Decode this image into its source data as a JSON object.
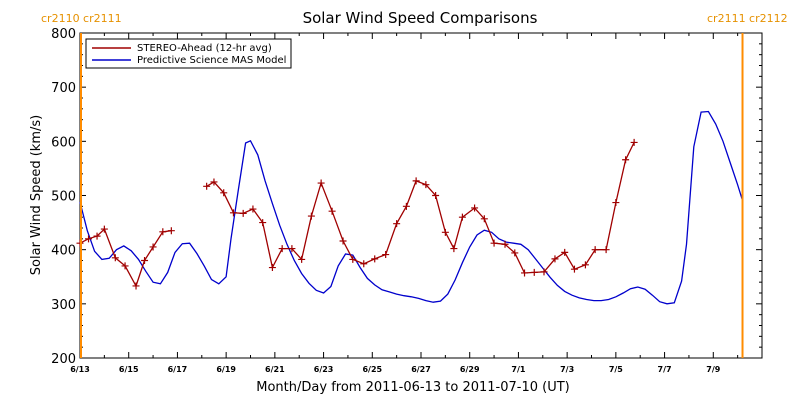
{
  "chart_data": {
    "type": "line",
    "title": "Solar Wind Speed Comparisons",
    "xlabel": "Month/Day from 2011-06-13 to 2011-07-10 (UT)",
    "ylabel": "Solar Wind Speed (km/s)",
    "ylim": [
      200,
      800
    ],
    "yticks": [
      200,
      300,
      400,
      500,
      600,
      700,
      800
    ],
    "xlim": [
      0,
      28
    ],
    "xtick_labels": [
      "6/13",
      "6/15",
      "6/17",
      "6/19",
      "6/21",
      "6/23",
      "6/25",
      "6/27",
      "6/29",
      "7/1",
      "7/3",
      "7/5",
      "7/7",
      "7/9"
    ],
    "xtick_values": [
      0,
      2,
      4,
      6,
      8,
      10,
      12,
      14,
      16,
      18,
      20,
      22,
      24,
      26
    ],
    "rotation_labels": {
      "left": "cr2110 cr2111",
      "right": "cr2111 cr2112"
    },
    "rotation_marker_x": [
      0,
      27.2
    ],
    "legend_position": "top-left",
    "colors": {
      "stereo": "#a00000",
      "model": "#0000cc",
      "rotation_marker": "#ff8c00"
    },
    "series": [
      {
        "name": "STEREO-Ahead (12-hr avg)",
        "marker": "plus",
        "segments": [
          [
            [
              0.0,
              412
            ],
            [
              0.35,
              420
            ],
            [
              0.7,
              425
            ],
            [
              1.0,
              438
            ],
            [
              1.45,
              385
            ],
            [
              1.85,
              370
            ],
            [
              2.3,
              333
            ],
            [
              2.65,
              380
            ],
            [
              3.0,
              405
            ],
            [
              3.4,
              433
            ],
            [
              3.75,
              435
            ]
          ],
          [
            [
              5.2,
              517
            ],
            [
              5.5,
              525
            ],
            [
              5.9,
              505
            ],
            [
              6.3,
              468
            ],
            [
              6.7,
              467
            ],
            [
              7.1,
              475
            ],
            [
              7.5,
              450
            ],
            [
              7.9,
              367
            ],
            [
              8.3,
              402
            ],
            [
              8.7,
              402
            ],
            [
              9.1,
              382
            ],
            [
              9.5,
              462
            ],
            [
              9.9,
              523
            ],
            [
              10.35,
              471
            ],
            [
              10.8,
              416
            ],
            [
              11.2,
              382
            ],
            [
              11.65,
              374
            ],
            [
              12.1,
              383
            ],
            [
              12.55,
              391
            ],
            [
              13.0,
              448
            ],
            [
              13.4,
              480
            ],
            [
              13.8,
              527
            ],
            [
              14.2,
              520
            ],
            [
              14.6,
              500
            ],
            [
              15.0,
              432
            ],
            [
              15.35,
              402
            ],
            [
              15.7,
              460
            ],
            [
              16.2,
              477
            ],
            [
              16.6,
              457
            ],
            [
              17.0,
              412
            ],
            [
              17.45,
              410
            ],
            [
              17.85,
              394
            ],
            [
              18.25,
              357
            ],
            [
              18.65,
              358
            ],
            [
              19.05,
              359
            ],
            [
              19.5,
              383
            ],
            [
              19.9,
              395
            ],
            [
              20.3,
              364
            ],
            [
              20.75,
              372
            ],
            [
              21.15,
              400
            ],
            [
              21.6,
              400
            ],
            [
              22.0,
              487
            ],
            [
              22.4,
              566
            ],
            [
              22.75,
              598
            ]
          ]
        ]
      },
      {
        "name": "Predictive Science MAS Model",
        "marker": "none",
        "segments": [
          [
            [
              0.0,
              488
            ],
            [
              0.3,
              435
            ],
            [
              0.6,
              397
            ],
            [
              0.9,
              382
            ],
            [
              1.2,
              384
            ],
            [
              1.5,
              400
            ],
            [
              1.8,
              407
            ],
            [
              2.1,
              398
            ],
            [
              2.4,
              382
            ],
            [
              2.7,
              360
            ],
            [
              3.0,
              340
            ],
            [
              3.3,
              337
            ],
            [
              3.6,
              358
            ],
            [
              3.9,
              395
            ],
            [
              4.2,
              411
            ],
            [
              4.5,
              412
            ],
            [
              4.8,
              393
            ],
            [
              5.1,
              370
            ],
            [
              5.4,
              345
            ],
            [
              5.7,
              337
            ],
            [
              6.0,
              350
            ],
            [
              6.2,
              420
            ],
            [
              6.5,
              510
            ],
            [
              6.8,
              597
            ],
            [
              7.0,
              601
            ],
            [
              7.3,
              575
            ],
            [
              7.6,
              527
            ],
            [
              7.9,
              485
            ],
            [
              8.2,
              445
            ],
            [
              8.5,
              410
            ],
            [
              8.8,
              380
            ],
            [
              9.1,
              356
            ],
            [
              9.4,
              338
            ],
            [
              9.7,
              325
            ],
            [
              10.0,
              320
            ],
            [
              10.3,
              332
            ],
            [
              10.6,
              370
            ],
            [
              10.9,
              392
            ],
            [
              11.2,
              390
            ],
            [
              11.5,
              367
            ],
            [
              11.8,
              347
            ],
            [
              12.1,
              335
            ],
            [
              12.4,
              326
            ],
            [
              12.7,
              322
            ],
            [
              13.0,
              318
            ],
            [
              13.3,
              315
            ],
            [
              13.6,
              313
            ],
            [
              13.9,
              310
            ],
            [
              14.2,
              306
            ],
            [
              14.5,
              303
            ],
            [
              14.8,
              305
            ],
            [
              15.1,
              318
            ],
            [
              15.4,
              344
            ],
            [
              15.7,
              376
            ],
            [
              16.0,
              405
            ],
            [
              16.3,
              427
            ],
            [
              16.6,
              436
            ],
            [
              16.9,
              432
            ],
            [
              17.2,
              420
            ],
            [
              17.5,
              414
            ],
            [
              17.8,
              412
            ],
            [
              18.1,
              410
            ],
            [
              18.4,
              400
            ],
            [
              18.7,
              383
            ],
            [
              19.0,
              366
            ],
            [
              19.3,
              349
            ],
            [
              19.6,
              334
            ],
            [
              19.9,
              323
            ],
            [
              20.2,
              316
            ],
            [
              20.5,
              311
            ],
            [
              20.8,
              308
            ],
            [
              21.1,
              306
            ],
            [
              21.4,
              306
            ],
            [
              21.7,
              308
            ],
            [
              22.0,
              313
            ],
            [
              22.3,
              320
            ],
            [
              22.6,
              328
            ],
            [
              22.9,
              331
            ],
            [
              23.2,
              327
            ],
            [
              23.5,
              316
            ],
            [
              23.8,
              304
            ],
            [
              24.1,
              300
            ],
            [
              24.4,
              302
            ],
            [
              24.7,
              342
            ],
            [
              24.9,
              410
            ],
            [
              25.2,
              590
            ],
            [
              25.5,
              654
            ],
            [
              25.8,
              655
            ],
            [
              26.1,
              632
            ],
            [
              26.4,
              600
            ],
            [
              26.7,
              560
            ],
            [
              27.0,
              520
            ],
            [
              27.2,
              491
            ]
          ]
        ]
      }
    ]
  }
}
